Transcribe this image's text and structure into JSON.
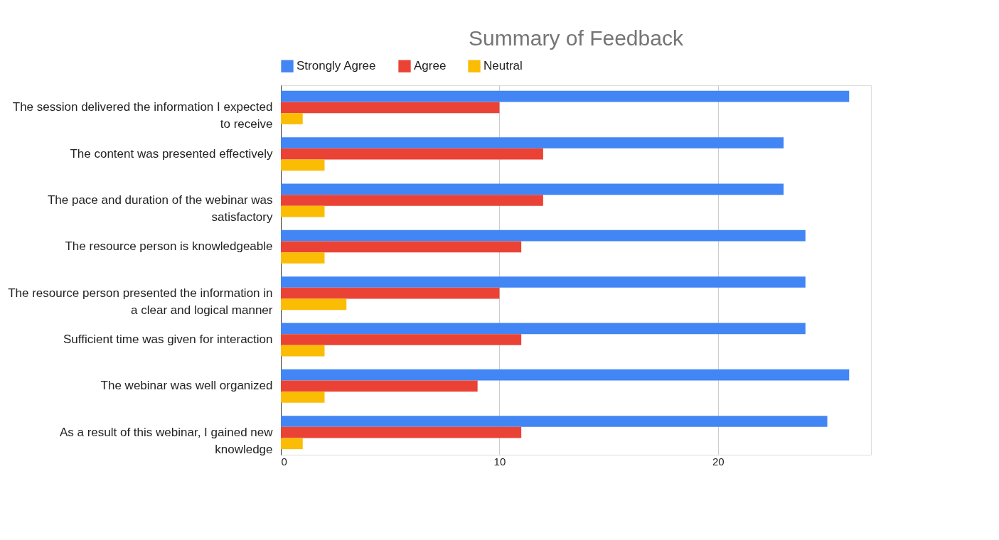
{
  "chart_data": {
    "type": "bar",
    "orientation": "horizontal",
    "title": "Summary of Feedback",
    "categories": [
      "The session delivered the information I expected to receive",
      "The content was presented effectively",
      "The pace and duration of the webinar was satisfactory",
      "The resource person is knowledgeable",
      "The resource person presented the information in a clear and logical manner",
      "Sufficient time was given for interaction",
      "The webinar was well organized",
      "As a result of this webinar, I gained new knowledge"
    ],
    "series": [
      {
        "name": "Strongly Agree",
        "color": "#4285f4",
        "values": [
          26,
          23,
          23,
          24,
          24,
          24,
          26,
          25
        ]
      },
      {
        "name": "Agree",
        "color": "#ea4335",
        "values": [
          10,
          12,
          12,
          11,
          10,
          11,
          9,
          11
        ]
      },
      {
        "name": "Neutral",
        "color": "#fbbc04",
        "values": [
          1,
          2,
          2,
          2,
          3,
          2,
          2,
          1
        ]
      }
    ],
    "xlim": [
      0,
      27
    ],
    "xticks": [
      0,
      10,
      20
    ],
    "grid": "x",
    "legend": "top"
  }
}
